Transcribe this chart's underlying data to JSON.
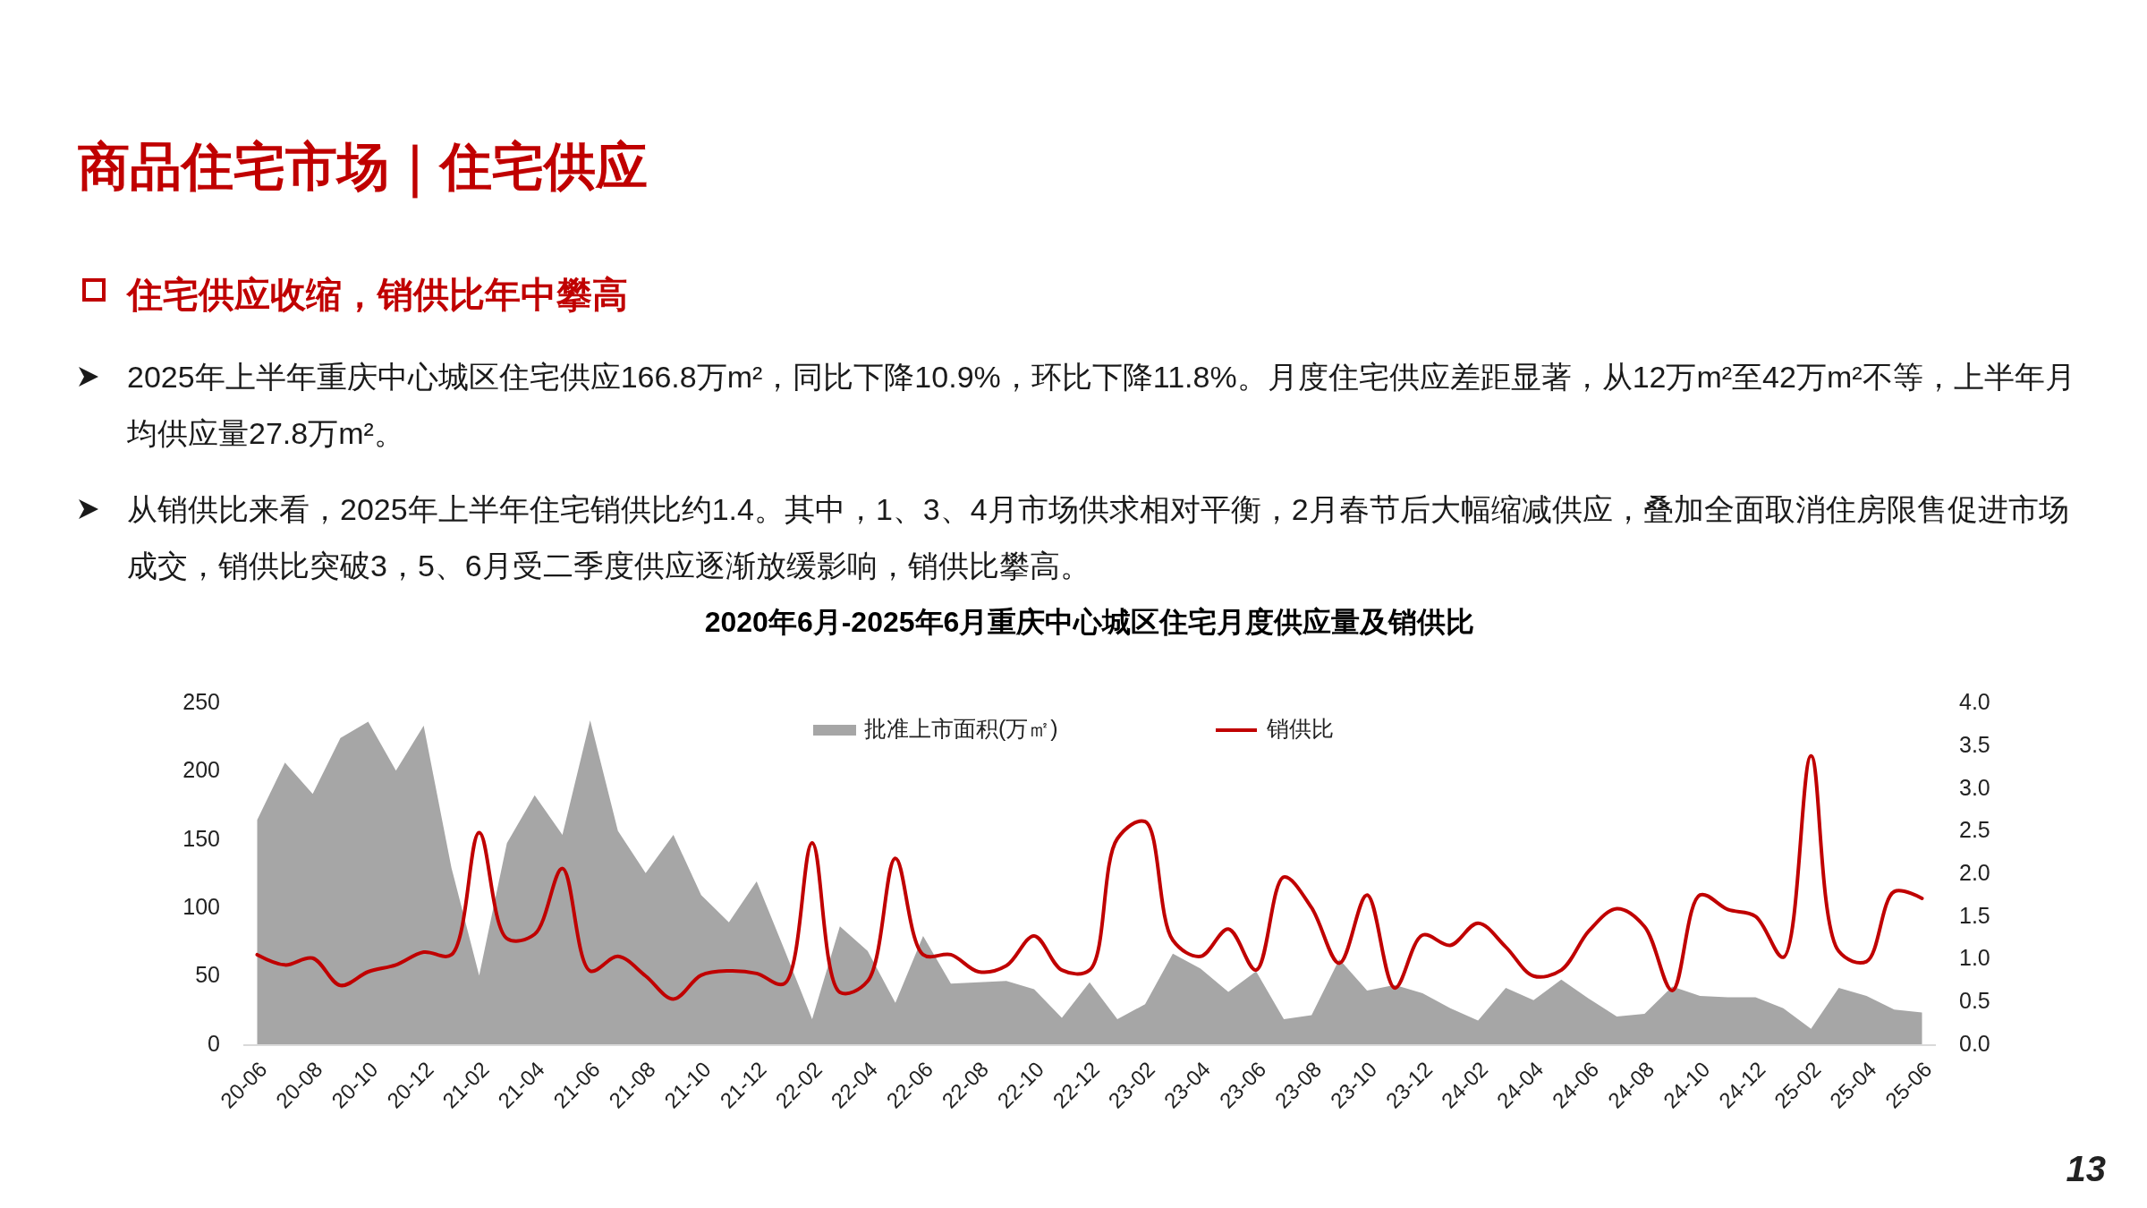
{
  "chart_data": {
    "type": "area",
    "title": "2020年6月-2025年6月重庆中心城区住宅月度供应量及销供比",
    "annotations": [
      "商品住宅市场｜住宅供应",
      "住宅供应收缩，销供比年中攀高",
      "2025年上半年重庆中心城区住宅供应166.8万m²，同比下降10.9%，环比下降11.8%。月度住宅供应差距显著，从12万m²至42万m²不等，上半年月均供应量27.8万m²。",
      "从销供比来看，2025年上半年住宅销供比约1.4。其中，1、3、4月市场供求相对平衡，2月春节后大幅缩减供应，叠加全面取消住房限售促进市场成交，销供比突破3，5、6月受二季度供应逐渐放缓影响，销供比攀高。",
      "13"
    ],
    "categories": [
      "20-06",
      null,
      "20-08",
      null,
      "20-10",
      null,
      "20-12",
      null,
      "21-02",
      null,
      "21-04",
      null,
      "21-06",
      null,
      "21-08",
      null,
      "21-10",
      null,
      "21-12",
      null,
      "22-02",
      null,
      "22-04",
      null,
      "22-06",
      null,
      "22-08",
      null,
      "22-10",
      null,
      "22-12",
      null,
      "23-02",
      null,
      "23-04",
      null,
      "23-06",
      null,
      "23-08",
      null,
      "23-10",
      null,
      "23-12",
      null,
      "24-02",
      null,
      "24-04",
      null,
      "24-06",
      null,
      "24-08",
      null,
      "24-10",
      null,
      "24-12",
      null,
      "25-02",
      null,
      "25-04",
      null,
      "25-06"
    ],
    "series": [
      {
        "name": "批准上市面积(万㎡)",
        "color": "#a6a6a6",
        "values": [
          165,
          207,
          184,
          225,
          237,
          201,
          234,
          130,
          51,
          148,
          183,
          154,
          238,
          157,
          126,
          154,
          110,
          90,
          120,
          70,
          19,
          87,
          69,
          31,
          80,
          45,
          46,
          47,
          41,
          20,
          46,
          19,
          30,
          67,
          56,
          39,
          54,
          19,
          22,
          63,
          40,
          44,
          38,
          27,
          18,
          42,
          33,
          48,
          34,
          21,
          23,
          43,
          36,
          35,
          35,
          27,
          12,
          42,
          36,
          26,
          24
        ]
      },
      {
        "name": "销供比",
        "type": "line",
        "axis": "y2",
        "color": "#c00000",
        "values": [
          1.06,
          0.94,
          1.02,
          0.7,
          0.86,
          0.94,
          1.09,
          1.06,
          2.49,
          1.25,
          1.3,
          2.07,
          0.87,
          1.04,
          0.81,
          0.54,
          0.82,
          0.87,
          0.84,
          0.72,
          2.37,
          0.62,
          0.75,
          2.19,
          1.06,
          1.06,
          0.86,
          0.93,
          1.28,
          0.88,
          0.88,
          2.42,
          2.62,
          1.23,
          1.04,
          1.36,
          0.88,
          1.97,
          1.61,
          0.96,
          1.76,
          0.67,
          1.29,
          1.17,
          1.43,
          1.15,
          0.81,
          0.88,
          1.34,
          1.6,
          1.39,
          0.64,
          1.76,
          1.59,
          1.51,
          1.03,
          3.39,
          1.1,
          0.98,
          1.8,
          1.72
        ]
      }
    ],
    "ylim": [
      0,
      250
    ],
    "yticks": [
      0,
      50,
      100,
      150,
      200,
      250
    ],
    "y2lim": [
      0,
      4
    ],
    "y2ticks": [
      {
        "value": 0,
        "label": "0.0"
      },
      {
        "value": 0.5,
        "label": "0.5"
      },
      {
        "value": 1,
        "label": "1.0"
      },
      {
        "value": 1.5,
        "label": "1.5"
      },
      {
        "value": 2,
        "label": "2.0"
      },
      {
        "value": 2.5,
        "label": "2.5"
      },
      {
        "value": 3,
        "label": "3.0"
      },
      {
        "value": 3.5,
        "label": "3.5"
      },
      {
        "value": 4,
        "label": "4.0"
      }
    ],
    "legend": "top"
  }
}
